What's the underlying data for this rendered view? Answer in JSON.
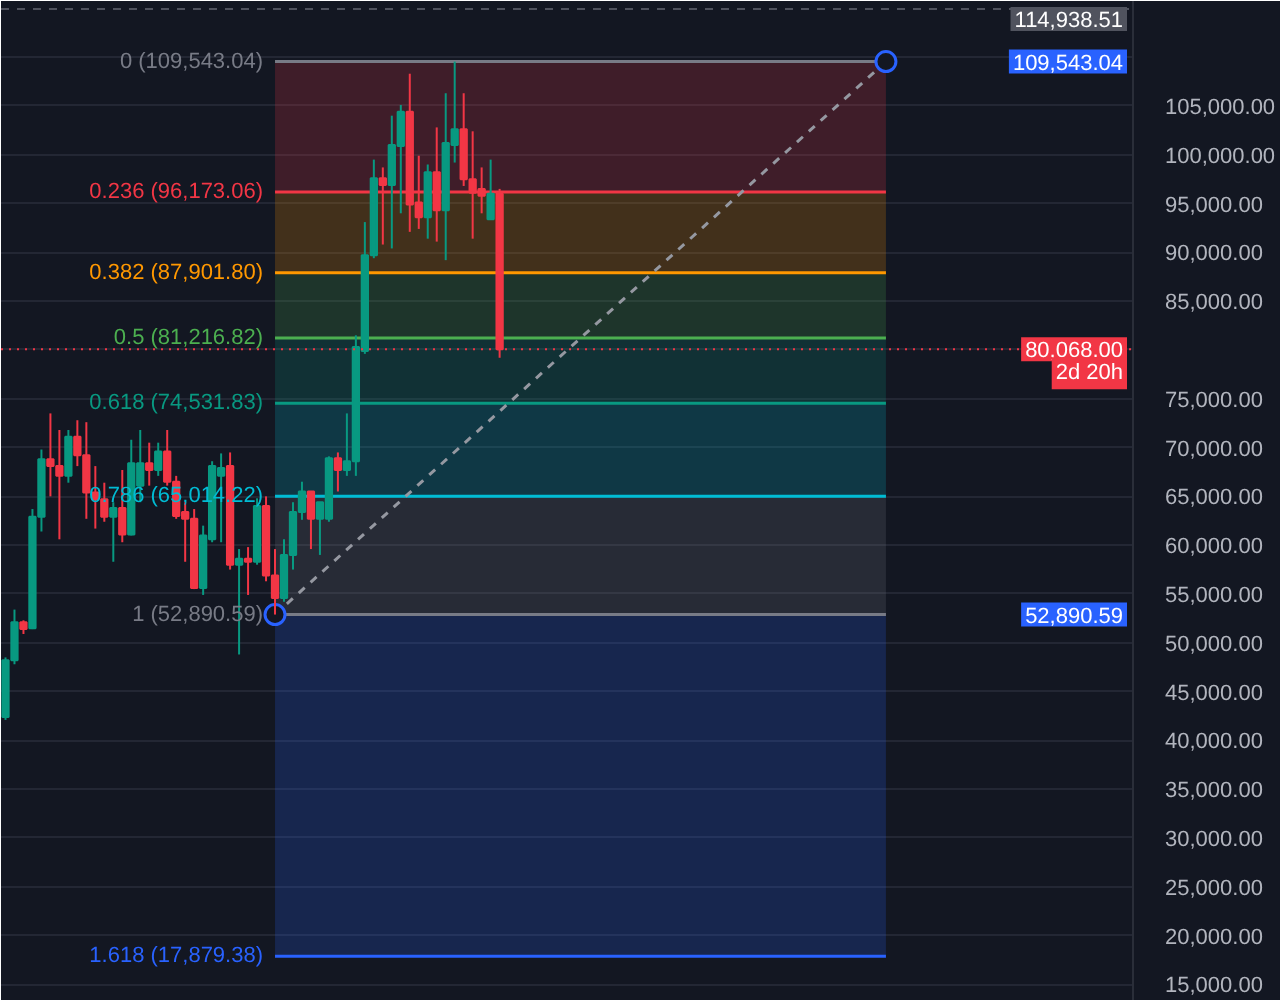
{
  "chart_data": {
    "type": "candlestick",
    "categories": [
      null,
      null,
      null,
      null,
      null,
      null,
      null,
      null,
      null,
      null,
      null,
      null,
      null,
      null,
      null,
      null,
      null,
      null,
      null,
      null,
      null,
      null,
      null,
      null,
      null,
      null,
      null,
      null,
      null,
      null,
      null,
      null,
      null,
      null,
      null,
      null,
      null,
      null,
      null,
      null,
      null,
      null,
      null,
      null,
      null,
      null,
      null,
      null,
      null,
      null,
      null,
      null,
      null,
      null,
      null,
      null,
      null,
      null,
      null,
      null,
      null,
      null,
      null,
      null,
      null,
      null,
      null,
      null,
      null,
      null,
      null,
      null,
      null,
      null,
      null,
      null,
      null,
      null,
      null,
      null,
      null,
      null,
      null,
      null,
      null,
      null,
      null,
      null,
      null,
      null,
      null,
      null,
      null,
      null,
      null,
      null,
      null,
      null,
      null,
      null,
      null,
      null,
      null,
      null,
      null,
      null,
      null,
      null,
      null,
      null,
      null,
      null,
      null,
      null,
      null,
      null,
      null,
      null,
      null,
      null,
      null,
      null,
      null,
      null,
      null,
      null
    ],
    "ohlc": [
      [
        42400,
        48500,
        42100,
        48200
      ],
      [
        48200,
        53400,
        47800,
        52100
      ],
      [
        52100,
        52300,
        50900,
        51400
      ],
      [
        51500,
        63700,
        51400,
        62900
      ],
      [
        62900,
        69800,
        61400,
        68800
      ],
      [
        68800,
        73500,
        65000,
        68100
      ],
      [
        68100,
        71800,
        60600,
        67100
      ],
      [
        67100,
        71800,
        66400,
        71100
      ],
      [
        71100,
        72800,
        68100,
        69200
      ],
      [
        69200,
        72600,
        62700,
        65400
      ],
      [
        65400,
        68100,
        61700,
        64700
      ],
      [
        64700,
        66400,
        62400,
        62900
      ],
      [
        62900,
        64400,
        58300,
        63800
      ],
      [
        63800,
        67700,
        60300,
        61100
      ],
      [
        61100,
        70800,
        61000,
        68400
      ],
      [
        66100,
        71800,
        64400,
        68400
      ],
      [
        68400,
        70500,
        66100,
        67700
      ],
      [
        67700,
        70500,
        67100,
        69600
      ],
      [
        69600,
        71800,
        66100,
        66500
      ],
      [
        66500,
        67100,
        62700,
        63000
      ],
      [
        63400,
        64400,
        58300,
        62700
      ],
      [
        62700,
        63700,
        55500,
        55600
      ],
      [
        55600,
        62000,
        54900,
        61000
      ],
      [
        60600,
        68600,
        60300,
        68100
      ],
      [
        67100,
        69400,
        60300,
        67900
      ],
      [
        68100,
        69500,
        57500,
        58000
      ],
      [
        58000,
        59600,
        48800,
        58600
      ],
      [
        58600,
        59800,
        54900,
        58300
      ],
      [
        58300,
        64800,
        58000,
        64000
      ],
      [
        64000,
        65000,
        56300,
        56900
      ],
      [
        56900,
        59600,
        52890.59,
        54600
      ],
      [
        54600,
        60600,
        54200,
        59000
      ],
      [
        59000,
        64400,
        57500,
        63400
      ],
      [
        63400,
        66500,
        62600,
        65500
      ],
      [
        65500,
        65500,
        59600,
        62700
      ],
      [
        62700,
        64400,
        59000,
        64400
      ],
      [
        62700,
        69100,
        62400,
        68900
      ],
      [
        68900,
        69500,
        65500,
        67700
      ],
      [
        67700,
        73500,
        67100,
        68600
      ],
      [
        68600,
        81500,
        67100,
        80300
      ],
      [
        79900,
        93100,
        79600,
        89700
      ],
      [
        89700,
        99500,
        89400,
        97600
      ],
      [
        97600,
        98700,
        90800,
        96900
      ],
      [
        96900,
        104000,
        90400,
        101000
      ],
      [
        100900,
        105100,
        94000,
        104400
      ],
      [
        104400,
        108300,
        92100,
        94900
      ],
      [
        95100,
        99900,
        92400,
        93600
      ],
      [
        93600,
        99000,
        91400,
        98200
      ],
      [
        98200,
        102800,
        91100,
        94300
      ],
      [
        94300,
        106300,
        89200,
        101200
      ],
      [
        101000,
        109543.04,
        99200,
        102600
      ],
      [
        102600,
        106300,
        96800,
        97500
      ],
      [
        97500,
        102400,
        91400,
        96100
      ],
      [
        96500,
        98700,
        94000,
        95800
      ],
      [
        93400,
        99500,
        93400,
        96000
      ],
      [
        96000,
        96500,
        79200,
        80068
      ],
      null,
      null,
      null,
      null,
      null,
      null,
      null,
      null,
      null,
      null,
      null,
      null,
      null,
      null,
      null,
      null,
      null,
      null,
      null,
      null,
      null,
      null,
      null,
      null,
      null,
      null,
      null,
      null,
      null,
      null,
      null,
      null,
      null,
      null,
      null,
      null,
      null,
      null,
      null,
      null,
      null,
      null,
      null,
      null,
      null,
      null,
      null,
      null,
      null,
      null,
      null,
      null,
      null,
      null,
      null,
      null,
      null,
      null,
      null,
      null,
      null,
      null,
      null,
      null,
      null,
      null,
      null,
      null,
      null,
      null
    ],
    "colors": [
      "#089981",
      "#089981",
      "#f23645",
      "#089981",
      "#089981",
      "#f23645",
      "#f23645",
      "#089981",
      "#f23645",
      "#f23645",
      "#f23645",
      "#f23645",
      "#089981",
      "#f23645",
      "#089981",
      "#089981",
      "#f23645",
      "#089981",
      "#f23645",
      "#f23645",
      "#f23645",
      "#f23645",
      "#089981",
      "#089981",
      "#089981",
      "#f23645",
      "#089981",
      "#f23645",
      "#089981",
      "#f23645",
      "#f23645",
      "#089981",
      "#089981",
      "#089981",
      "#f23645",
      "#089981",
      "#089981",
      "#f23645",
      "#089981",
      "#089981",
      "#089981",
      "#089981",
      "#f23645",
      "#089981",
      "#089981",
      "#f23645",
      "#f23645",
      "#089981",
      "#f23645",
      "#089981",
      "#089981",
      "#f23645",
      "#f23645",
      "#f23645",
      "#089981",
      "#f23645",
      null,
      null,
      null,
      null,
      null,
      null,
      null,
      null,
      null,
      null,
      null,
      null,
      null,
      null,
      null,
      null,
      null,
      null,
      null,
      null,
      null,
      null,
      null,
      null,
      null,
      null,
      null,
      null,
      null,
      null,
      null,
      null,
      null,
      null,
      null,
      null,
      null,
      null,
      null,
      null,
      null,
      null,
      null,
      null,
      null,
      null,
      null,
      null,
      null,
      null,
      null,
      null,
      null,
      null,
      null,
      null,
      null,
      null,
      null,
      null,
      null,
      null,
      null,
      null,
      null,
      null,
      null,
      null,
      null,
      null
    ],
    "series": [
      {
        "type": "line",
        "color": "#9598a1",
        "line_style": "dashed",
        "marker": "circle",
        "values": [
          null,
          null,
          null,
          null,
          null,
          null,
          null,
          null,
          null,
          null,
          null,
          null,
          null,
          null,
          null,
          null,
          null,
          null,
          null,
          null,
          null,
          null,
          null,
          null,
          null,
          null,
          null,
          null,
          null,
          null,
          52890.59,
          null,
          null,
          null,
          null,
          null,
          null,
          null,
          null,
          null,
          null,
          null,
          null,
          null,
          null,
          null,
          null,
          null,
          null,
          null,
          null,
          null,
          null,
          null,
          null,
          null,
          null,
          null,
          null,
          null,
          null,
          null,
          null,
          null,
          null,
          null,
          null,
          null,
          null,
          null,
          null,
          null,
          null,
          null,
          null,
          null,
          null,
          null,
          null,
          null,
          null,
          null,
          null,
          null,
          null,
          null,
          null,
          null,
          null,
          null,
          null,
          null,
          null,
          null,
          null,
          null,
          null,
          null,
          109543.04,
          null,
          null,
          null,
          null,
          null,
          null,
          null,
          null,
          null,
          null,
          null,
          null,
          null,
          null,
          null,
          null,
          null,
          null,
          null,
          null,
          null,
          null,
          null,
          null,
          null,
          null,
          null
        ]
      }
    ],
    "ylim": [
      13300,
      115750
    ],
    "yticks": [
      {
        "value": 15000,
        "label": "15,000.00"
      },
      {
        "value": 20000,
        "label": "20,000.00"
      },
      {
        "value": 25000,
        "label": "25,000.00"
      },
      {
        "value": 30000,
        "label": "30,000.00"
      },
      {
        "value": 35000,
        "label": "35,000.00"
      },
      {
        "value": 40000,
        "label": "40,000.00"
      },
      {
        "value": 45000,
        "label": "45,000.00"
      },
      {
        "value": 50000,
        "label": "50,000.00"
      },
      {
        "value": 55000,
        "label": "55,000.00"
      },
      {
        "value": 60000,
        "label": "60,000.00"
      },
      {
        "value": 65000,
        "label": "65,000.00"
      },
      {
        "value": 70000,
        "label": "70,000.00"
      },
      {
        "value": 75000,
        "label": "75,000.00"
      },
      {
        "value": 80000,
        "label": null
      },
      {
        "value": 85000,
        "label": "85,000.00"
      },
      {
        "value": 90000,
        "label": "90,000.00"
      },
      {
        "value": 95000,
        "label": "95,000.00"
      },
      {
        "value": 100000,
        "label": "100,000.00"
      },
      {
        "value": 105000,
        "label": "105,000.00"
      },
      {
        "value": 110000,
        "label": null
      }
    ],
    "grid": "y",
    "bands": [
      {
        "axis": "y",
        "from": 109543.04,
        "to": 96173.06,
        "color": "#f23645"
      },
      {
        "axis": "y",
        "from": 96173.06,
        "to": 87901.8,
        "color": "#ff9800"
      },
      {
        "axis": "y",
        "from": 87901.8,
        "to": 81216.82,
        "color": "#4caf50"
      },
      {
        "axis": "y",
        "from": 81216.82,
        "to": 74531.83,
        "color": "#089981"
      },
      {
        "axis": "y",
        "from": 74531.83,
        "to": 65014.22,
        "color": "#00bcd4"
      },
      {
        "axis": "y",
        "from": 65014.22,
        "to": 52890.59,
        "color": "#787b86"
      },
      {
        "axis": "y",
        "from": 52890.59,
        "to": 17879.38,
        "color": "#2962ff"
      }
    ],
    "ref_lines": [
      {
        "axis": "y",
        "value": 109543.04,
        "label": "0 (109,543.04)",
        "color": "#787b86"
      },
      {
        "axis": "y",
        "value": 96173.06,
        "label": "0.236 (96,173.06)",
        "color": "#f23645"
      },
      {
        "axis": "y",
        "value": 87901.8,
        "label": "0.382 (87,901.80)",
        "color": "#ff9800"
      },
      {
        "axis": "y",
        "value": 81216.82,
        "label": "0.5 (81,216.82)",
        "color": "#4caf50"
      },
      {
        "axis": "y",
        "value": 74531.83,
        "label": "0.618 (74,531.83)",
        "color": "#089981"
      },
      {
        "axis": "y",
        "value": 65014.22,
        "label": "0.786 (65,014.22)",
        "color": "#00bcd4"
      },
      {
        "axis": "y",
        "value": 52890.59,
        "label": "1 (52,890.59)",
        "color": "#787b86"
      },
      {
        "axis": "y",
        "value": 17879.38,
        "label": "1.618 (17,879.38)",
        "color": "#2962ff"
      },
      {
        "axis": "y",
        "value": 80068,
        "label": "80,068.00\n2d 20h",
        "color": "#f23645",
        "line_style": "dotted"
      },
      {
        "axis": "y",
        "value": 114938.51,
        "label": "114,938.51",
        "color": "#50535e",
        "line_style": "dashed"
      }
    ],
    "annotations": [
      "52,890.59",
      "109,543.04"
    ]
  }
}
